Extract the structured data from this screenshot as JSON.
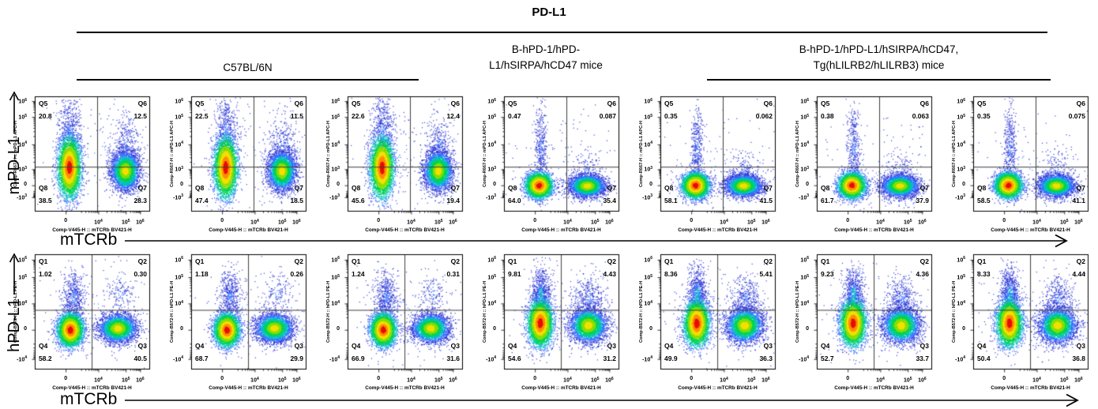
{
  "header": {
    "title": "PD-L1",
    "groups": [
      {
        "line1": "C57BL/6N",
        "line2": ""
      },
      {
        "line1": "B-hPD-1/hPD-",
        "line2": "L1/hSIRPA/hCD47 mice"
      },
      {
        "line1": "B-hPD-1/hPD-L1/hSIRPA/hCD47,",
        "line2": "Tg(hLILRB2/hLILRB3) mice"
      }
    ]
  },
  "chart_data": {
    "type": "scatter",
    "subtype": "flow-cytometry-pseudocolor-density",
    "figure_title": "PD-L1",
    "value_units": "percent of events per quadrant",
    "column_groups": [
      {
        "label": "C57BL/6N",
        "columns": [
          1,
          2,
          3
        ],
        "underlined": true
      },
      {
        "label": "B-hPD-1/hPD-L1/hSIRPA/hCD47 mice",
        "columns": [
          4
        ],
        "underlined": false
      },
      {
        "label": "B-hPD-1/hPD-L1/hSIRPA/hCD47, Tg(hLILRB2/hLILRB3) mice",
        "columns": [
          5,
          6,
          7
        ],
        "underlined": true
      }
    ],
    "palette": [
      "#e81000",
      "#ff8f00",
      "#f5e000",
      "#86e000",
      "#00d455",
      "#00bfc0",
      "#2f6bff",
      "#2732d6"
    ],
    "cluster_profiles": {
      "A": [
        [
          0.5,
          0.48,
          0.3,
          0.3,
          150,
          6
        ],
        [
          0.3,
          0.3,
          0.05,
          0.16,
          520,
          6
        ],
        [
          0.79,
          0.42,
          0.06,
          0.13,
          330,
          6
        ],
        [
          0.785,
          0.645,
          0.062,
          0.085,
          3600,
          2
        ],
        [
          0.295,
          0.615,
          0.048,
          0.125,
          4700,
          0
        ]
      ],
      "B": [
        [
          0.5,
          0.6,
          0.3,
          0.25,
          130,
          6
        ],
        [
          0.315,
          0.45,
          0.028,
          0.19,
          400,
          6
        ],
        [
          0.73,
          0.63,
          0.07,
          0.09,
          140,
          6
        ],
        [
          0.72,
          0.775,
          0.078,
          0.048,
          3400,
          2
        ],
        [
          0.3,
          0.772,
          0.055,
          0.052,
          4500,
          0
        ]
      ],
      "C": [
        [
          0.5,
          0.52,
          0.3,
          0.26,
          140,
          6
        ],
        [
          0.335,
          0.37,
          0.05,
          0.12,
          540,
          6
        ],
        [
          0.74,
          0.34,
          0.07,
          0.09,
          150,
          6
        ],
        [
          0.72,
          0.64,
          0.08,
          0.062,
          3400,
          2
        ],
        [
          0.305,
          0.655,
          0.052,
          0.068,
          4500,
          0
        ]
      ],
      "D": [
        [
          0.5,
          0.5,
          0.3,
          0.26,
          140,
          6
        ],
        [
          0.315,
          0.34,
          0.042,
          0.115,
          700,
          5
        ],
        [
          0.74,
          0.38,
          0.07,
          0.1,
          400,
          6
        ],
        [
          0.73,
          0.615,
          0.08,
          0.075,
          3400,
          2
        ],
        [
          0.31,
          0.595,
          0.052,
          0.095,
          4500,
          0
        ]
      ]
    },
    "rows": [
      {
        "y_outer_label": "mPD-L1",
        "x_outer_label": "mTCRb",
        "y_axis_caption": "Comp-R667-H :: mPD-L1 APC-H",
        "x_axis_caption": "Comp-V445-H :: mTCRb BV421-H",
        "quadrants": {
          "tl": "Q5",
          "tr": "Q6",
          "bl": "Q8",
          "br": "Q7"
        },
        "divider": {
          "x": 0.545,
          "y": 0.615
        },
        "x_ticks": [
          {
            "label": "0",
            "f": 0.27
          },
          {
            "label": "10^4",
            "f": 0.555
          },
          {
            "label": "10^5",
            "f": 0.795
          },
          {
            "label": "10^6",
            "f": 0.92
          }
        ],
        "y_ticks": [
          {
            "label": "10^6",
            "f": 0.042
          },
          {
            "label": "10^5",
            "f": 0.18
          },
          {
            "label": "10^4",
            "f": 0.42
          },
          {
            "label": "10^3",
            "f": 0.637
          },
          {
            "label": "0",
            "f": 0.777
          },
          {
            "label": "-10^3",
            "f": 0.881
          }
        ],
        "plots": [
          {
            "profile": "A",
            "values": {
              "Q5": "20.8",
              "Q6": "12.5",
              "Q8": "38.5",
              "Q7": "28.3"
            }
          },
          {
            "profile": "A",
            "values": {
              "Q5": "22.5",
              "Q6": "11.5",
              "Q8": "47.4",
              "Q7": "18.5"
            }
          },
          {
            "profile": "A",
            "values": {
              "Q5": "22.6",
              "Q6": "12.4",
              "Q8": "45.6",
              "Q7": "19.4"
            }
          },
          {
            "profile": "B",
            "values": {
              "Q5": "0.47",
              "Q6": "0.087",
              "Q8": "64.0",
              "Q7": "35.4"
            }
          },
          {
            "profile": "B",
            "values": {
              "Q5": "0.35",
              "Q6": "0.062",
              "Q8": "58.1",
              "Q7": "41.5"
            }
          },
          {
            "profile": "B",
            "values": {
              "Q5": "0.38",
              "Q6": "0.063",
              "Q8": "61.7",
              "Q7": "37.9"
            }
          },
          {
            "profile": "B",
            "values": {
              "Q5": "0.35",
              "Q6": "0.075",
              "Q8": "58.5",
              "Q7": "41.1"
            }
          }
        ]
      },
      {
        "y_outer_label": "hPD-L1",
        "x_outer_label": "mTCRb",
        "y_axis_caption": "Comp-B572-H :: hPD-L1 PE-H",
        "x_axis_caption": "Comp-V445-H :: mTCRb BV421-H",
        "quadrants": {
          "tl": "Q1",
          "tr": "Q2",
          "bl": "Q4",
          "br": "Q3"
        },
        "divider": {
          "x": 0.497,
          "y": 0.486
        },
        "x_ticks": [
          {
            "label": "0",
            "f": 0.27
          },
          {
            "label": "10^4",
            "f": 0.555
          },
          {
            "label": "10^5",
            "f": 0.795
          },
          {
            "label": "10^6",
            "f": 0.92
          }
        ],
        "y_ticks": [
          {
            "label": "10^6",
            "f": 0.048
          },
          {
            "label": "10^5",
            "f": 0.2
          },
          {
            "label": "10^4",
            "f": 0.43
          },
          {
            "label": "0",
            "f": 0.66
          },
          {
            "label": "-10^4",
            "f": 0.915
          }
        ],
        "plots": [
          {
            "profile": "C",
            "values": {
              "Q1": "1.02",
              "Q2": "0.30",
              "Q4": "58.2",
              "Q3": "40.5"
            }
          },
          {
            "profile": "C",
            "values": {
              "Q1": "1.18",
              "Q2": "0.26",
              "Q4": "68.7",
              "Q3": "29.9"
            }
          },
          {
            "profile": "C",
            "values": {
              "Q1": "1.24",
              "Q2": "0.31",
              "Q4": "66.9",
              "Q3": "31.6"
            }
          },
          {
            "profile": "D",
            "values": {
              "Q1": "9.81",
              "Q2": "4.43",
              "Q4": "54.6",
              "Q3": "31.2"
            }
          },
          {
            "profile": "D",
            "values": {
              "Q1": "8.36",
              "Q2": "5.41",
              "Q4": "49.9",
              "Q3": "36.3"
            }
          },
          {
            "profile": "D",
            "values": {
              "Q1": "9.23",
              "Q2": "4.36",
              "Q4": "52.7",
              "Q3": "33.7"
            }
          },
          {
            "profile": "D",
            "values": {
              "Q1": "8.33",
              "Q2": "4.44",
              "Q4": "50.4",
              "Q3": "36.8"
            }
          }
        ]
      }
    ]
  }
}
